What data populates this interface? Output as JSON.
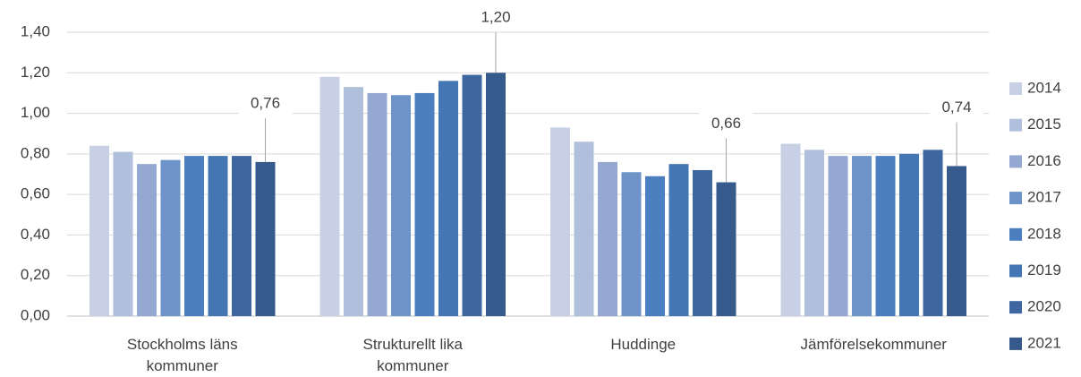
{
  "chart_data": {
    "type": "bar",
    "categories": [
      "Stockholms läns kommuner",
      "Strukturellt lika kommuner",
      "Huddinge",
      "Jämförelsekommuner"
    ],
    "series": [
      {
        "name": "2014",
        "color": "#c7d0e4",
        "values": [
          0.84,
          1.18,
          0.93,
          0.85
        ]
      },
      {
        "name": "2015",
        "color": "#b0bfdc",
        "values": [
          0.81,
          1.13,
          0.86,
          0.82
        ]
      },
      {
        "name": "2016",
        "color": "#94a8d2",
        "values": [
          0.75,
          1.1,
          0.76,
          0.79
        ]
      },
      {
        "name": "2017",
        "color": "#6d93c9",
        "values": [
          0.77,
          1.09,
          0.71,
          0.79
        ]
      },
      {
        "name": "2018",
        "color": "#4b7fc0",
        "values": [
          0.79,
          1.1,
          0.69,
          0.79
        ]
      },
      {
        "name": "2019",
        "color": "#4576b4",
        "values": [
          0.79,
          1.16,
          0.75,
          0.8
        ]
      },
      {
        "name": "2020",
        "color": "#3e67a0",
        "values": [
          0.79,
          1.19,
          0.72,
          0.82
        ]
      },
      {
        "name": "2021",
        "color": "#365a8b",
        "values": [
          0.76,
          1.2,
          0.66,
          0.74
        ],
        "value_labels": [
          "0,76",
          "1,20",
          "0,66",
          "0,74"
        ]
      }
    ],
    "ylim": [
      0,
      1.4
    ],
    "yticks": [
      {
        "value": 0,
        "label": "0,00"
      },
      {
        "value": 0.2,
        "label": "0,20"
      },
      {
        "value": 0.4,
        "label": "0,40"
      },
      {
        "value": 0.6,
        "label": "0,60"
      },
      {
        "value": 0.8,
        "label": "0,80"
      },
      {
        "value": 1.0,
        "label": "1,00"
      },
      {
        "value": 1.2,
        "label": "1,20"
      },
      {
        "value": 1.4,
        "label": "1,40"
      }
    ],
    "grid": true,
    "legend": "right"
  }
}
